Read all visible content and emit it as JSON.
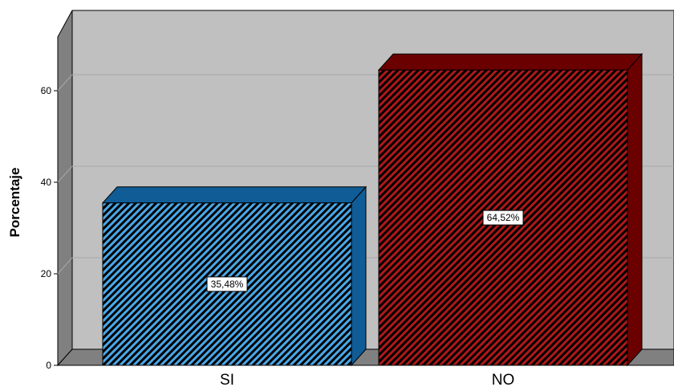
{
  "chart_data": {
    "type": "bar",
    "title": "",
    "xlabel": "",
    "ylabel": "Porcentaje",
    "ylim": [
      0,
      75
    ],
    "yticks": [
      0,
      20,
      40,
      60
    ],
    "grid": true,
    "legend": "none",
    "categories": [
      "SI",
      "NO"
    ],
    "values": [
      35.48,
      64.52
    ],
    "data_labels": [
      "35,48%",
      "64,52%"
    ],
    "colors": [
      "#0f5c96",
      "#6b0000"
    ],
    "hatch_colors": [
      "#4aa8e8",
      "#b01818"
    ],
    "background": "#c0c0c0"
  }
}
